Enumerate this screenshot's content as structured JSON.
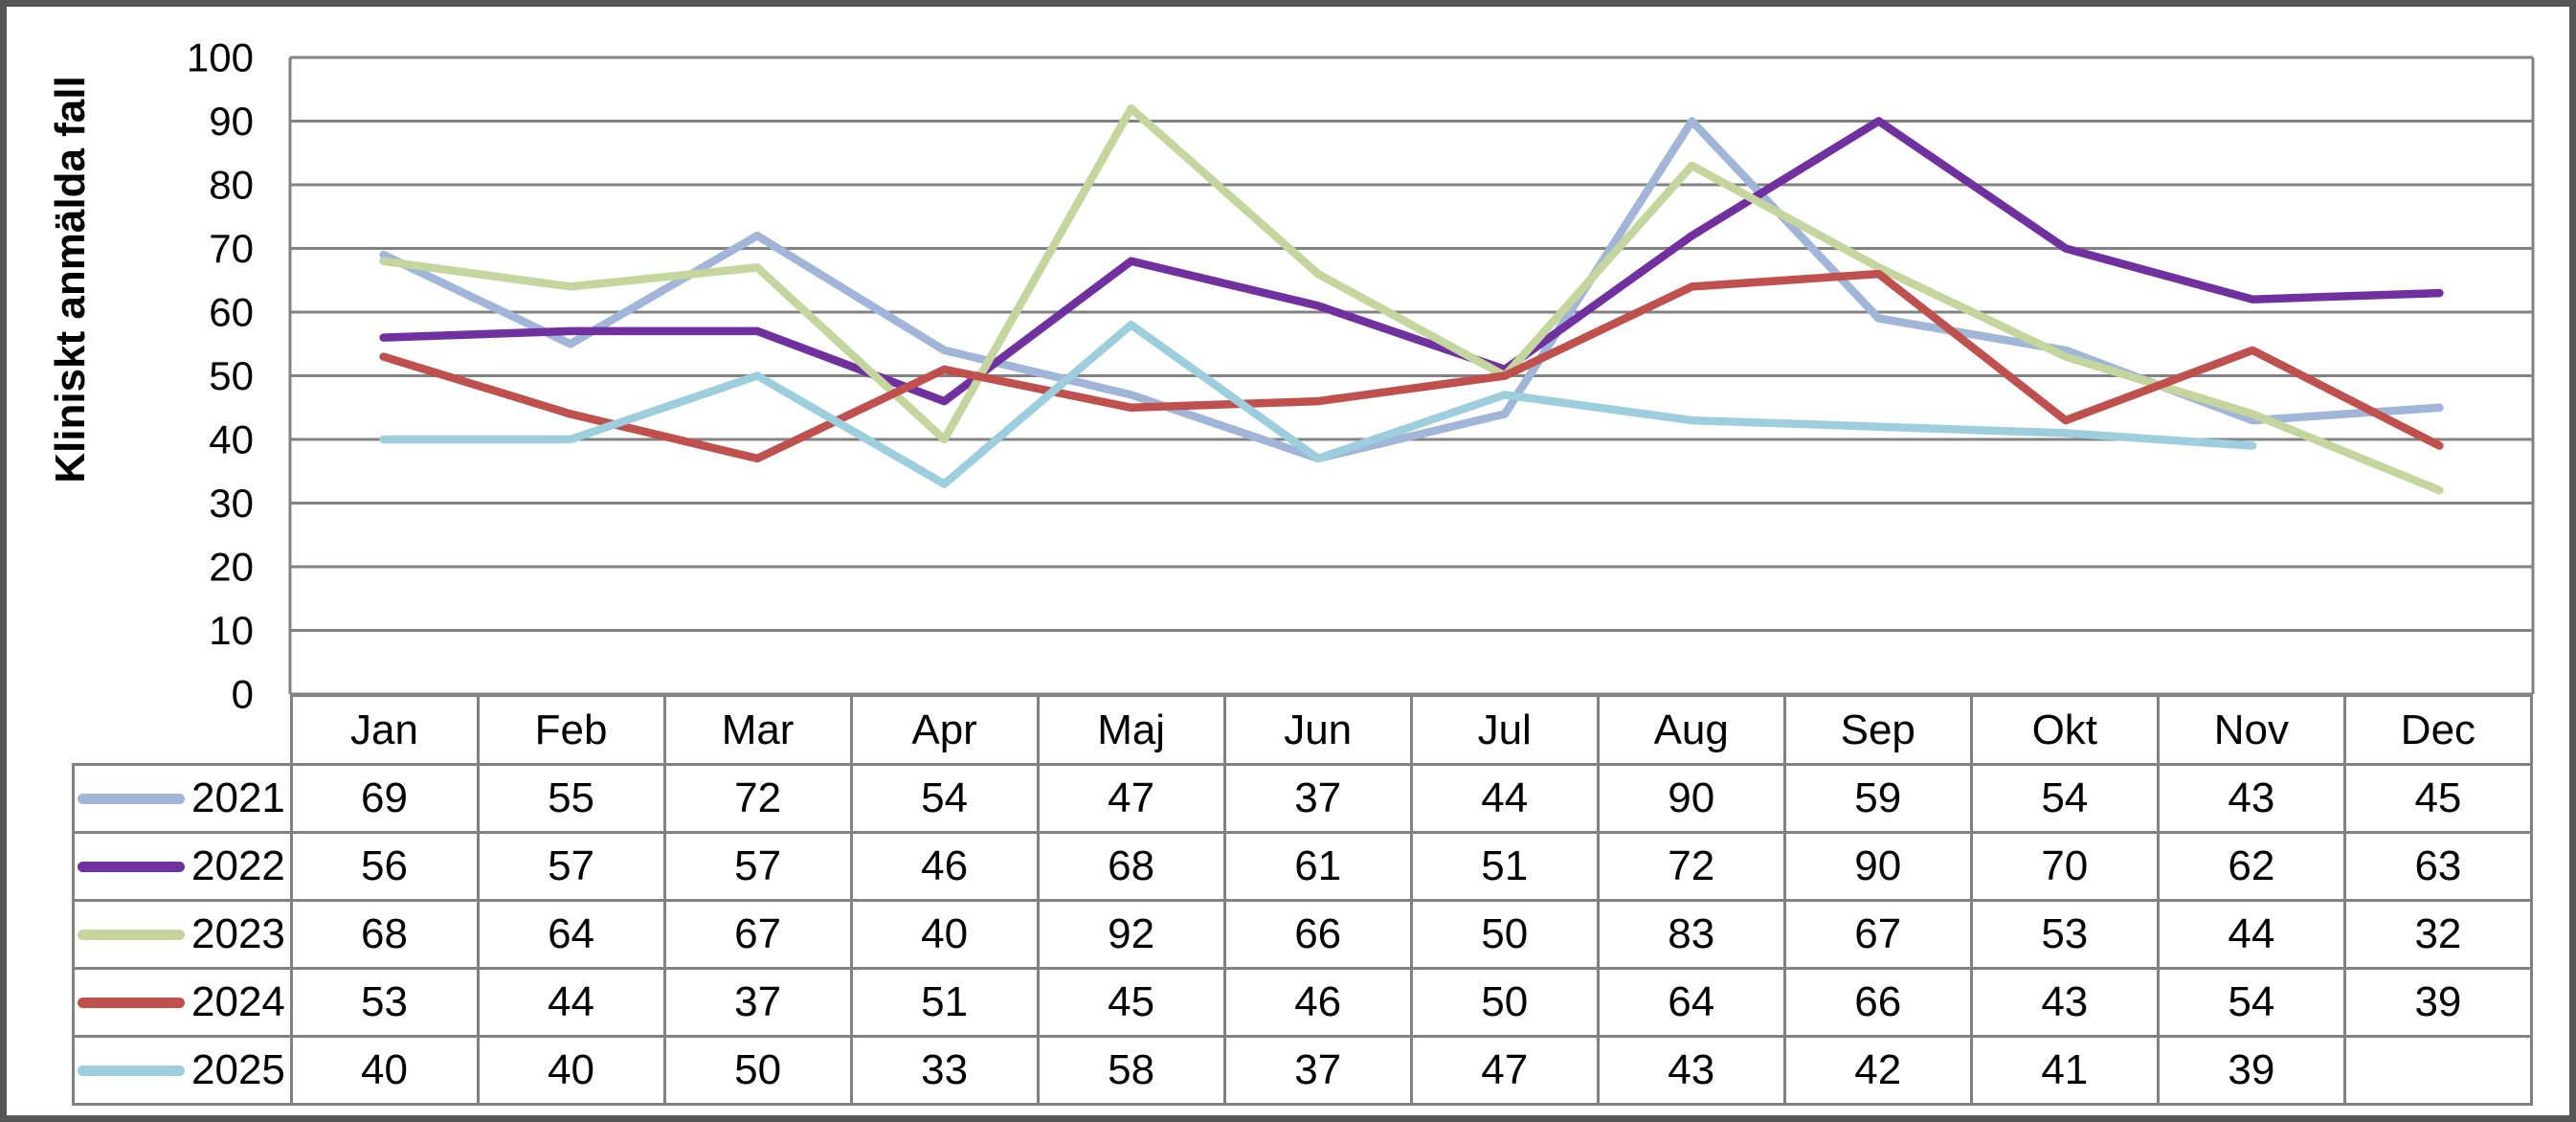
{
  "chart_data": {
    "type": "line",
    "title": "",
    "xlabel": "",
    "ylabel": "Kliniskt anmälda fall",
    "ylim": [
      0,
      100
    ],
    "y_ticks": [
      0,
      10,
      20,
      30,
      40,
      50,
      60,
      70,
      80,
      90,
      100
    ],
    "grid": "horizontal",
    "legend_position": "data-table-left",
    "categories": [
      "Jan",
      "Feb",
      "Mar",
      "Apr",
      "Maj",
      "Jun",
      "Jul",
      "Aug",
      "Sep",
      "Okt",
      "Nov",
      "Dec"
    ],
    "series": [
      {
        "name": "2021",
        "color": "#A0B5D8",
        "values": [
          69,
          55,
          72,
          54,
          47,
          37,
          44,
          90,
          59,
          54,
          43,
          45
        ]
      },
      {
        "name": "2022",
        "color": "#7030A0",
        "values": [
          56,
          57,
          57,
          46,
          68,
          61,
          51,
          72,
          90,
          70,
          62,
          63
        ]
      },
      {
        "name": "2023",
        "color": "#C4D69D",
        "values": [
          68,
          64,
          67,
          40,
          92,
          66,
          50,
          83,
          67,
          53,
          44,
          32
        ]
      },
      {
        "name": "2024",
        "color": "#C0504D",
        "values": [
          53,
          44,
          37,
          51,
          45,
          46,
          50,
          64,
          66,
          43,
          54,
          39
        ]
      },
      {
        "name": "2025",
        "color": "#9CCEDD",
        "values": [
          40,
          40,
          50,
          33,
          58,
          37,
          47,
          43,
          42,
          41,
          39,
          null
        ]
      }
    ]
  },
  "colors": {
    "gridline": "#828282",
    "axis": "#828282",
    "table_border": "#828282",
    "frame": "#565656",
    "text": "#000000"
  }
}
